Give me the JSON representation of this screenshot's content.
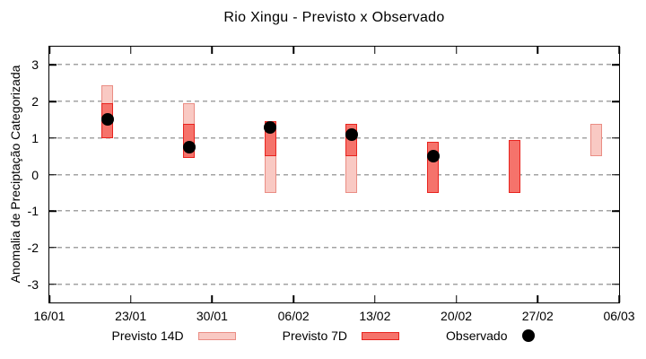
{
  "title": "Rio Xingu - Previsto x Observado",
  "legend": {
    "items": [
      {
        "label": "Previsto 14D",
        "swatch": "light-pink-box"
      },
      {
        "label": "Previsto 7D",
        "swatch": "salmon-red-box"
      },
      {
        "label": "Observado",
        "swatch": "black-dot"
      }
    ]
  },
  "colors": {
    "forecast14_fill": "#f9c9c3",
    "forecast14_border": "#ea8d84",
    "forecast7_fill": "#f5736b",
    "forecast7_border": "#e8231e",
    "observed": "#000000",
    "grid": "#a3a3a3",
    "axis": "#000000",
    "background": "#ffffff"
  },
  "chart_data": {
    "type": "bar",
    "subtype": "range-bars-with-scatter-overlay",
    "title": "Rio Xingu - Previsto x Observado",
    "xlabel": "",
    "ylabel": "Anomalia de Preciptação Categorizada",
    "ylim": [
      -3.5,
      3.5
    ],
    "yticks": [
      3,
      2,
      1,
      0,
      -1,
      -2,
      -3
    ],
    "grid": "horizontal-dashed-only",
    "legend_position": "below-plot",
    "x_unit": "days after 16/01 (weekly bars)",
    "xlim": [
      0,
      49
    ],
    "xticks": [
      {
        "day": 0,
        "label": "16/01"
      },
      {
        "day": 7,
        "label": "23/01"
      },
      {
        "day": 14,
        "label": "30/01"
      },
      {
        "day": 21,
        "label": "06/02"
      },
      {
        "day": 28,
        "label": "13/02"
      },
      {
        "day": 35,
        "label": "20/02"
      },
      {
        "day": 42,
        "label": "27/02"
      },
      {
        "day": 49,
        "label": "06/03"
      }
    ],
    "series": [
      {
        "name": "Previsto 14D",
        "kind": "range-bar",
        "fill": "#f9c9c3",
        "border": "#ea8d84",
        "points": [
          {
            "day": 5,
            "lo": 1.0,
            "hi": 2.45
          },
          {
            "day": 12,
            "lo": 0.45,
            "hi": 1.95
          },
          {
            "day": 19,
            "lo": -0.5,
            "hi": 1.45
          },
          {
            "day": 26,
            "lo": -0.5,
            "hi": 1.4
          },
          {
            "day": 47,
            "lo": 0.5,
            "hi": 1.4
          }
        ]
      },
      {
        "name": "Previsto 7D",
        "kind": "range-bar",
        "fill": "#f5736b",
        "border": "#e8231e",
        "points": [
          {
            "day": 5,
            "lo": 1.0,
            "hi": 1.95
          },
          {
            "day": 12,
            "lo": 0.45,
            "hi": 1.4
          },
          {
            "day": 19,
            "lo": 0.5,
            "hi": 1.45
          },
          {
            "day": 26,
            "lo": 0.5,
            "hi": 1.4
          },
          {
            "day": 33,
            "lo": -0.5,
            "hi": 0.9
          },
          {
            "day": 40,
            "lo": -0.5,
            "hi": 0.95
          }
        ]
      },
      {
        "name": "Observado",
        "kind": "scatter",
        "color": "#000000",
        "points": [
          {
            "day": 5,
            "value": 1.5
          },
          {
            "day": 12,
            "value": 0.75
          },
          {
            "day": 19,
            "value": 1.3
          },
          {
            "day": 26,
            "value": 1.1
          },
          {
            "day": 33,
            "value": 0.5
          }
        ]
      }
    ]
  }
}
